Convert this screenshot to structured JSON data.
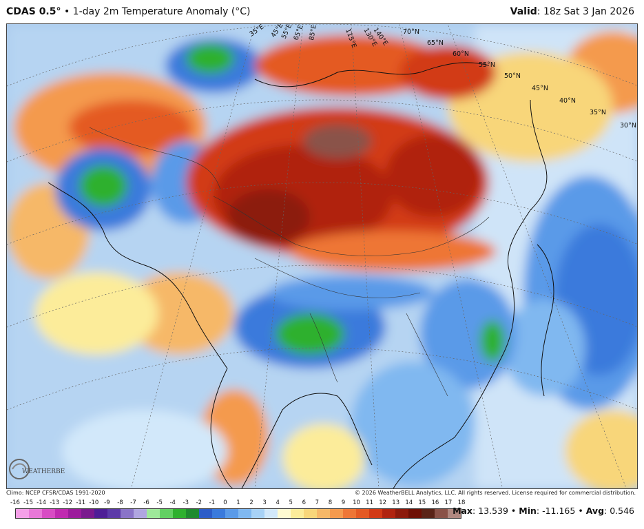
{
  "header": {
    "model": "CDAS 0.5°",
    "separator": "•",
    "product": "1-day 2m Temperature Anomaly (°C)",
    "valid_label": "Valid",
    "valid_value": ": 18z Sat 3 Jan 2026"
  },
  "map": {
    "lon_labels": [
      "35°E",
      "45°E",
      "55°E",
      "65°E",
      "85°E",
      "115°E",
      "130°E",
      "140°E"
    ],
    "lat_labels": [
      "70°N",
      "65°N",
      "60°N",
      "55°N",
      "50°N",
      "45°N",
      "40°N",
      "35°N",
      "30°N"
    ],
    "logo_text": "WEATHERBELL"
  },
  "footer": {
    "climo": "Climo: NCEP CFSR/CDAS 1991-2020",
    "copyright": "© 2026 WeatherBELL Analytics, LLC. All rights reserved. License required for commercial distribution."
  },
  "colorbar": {
    "ticks": [
      "-16",
      "-15",
      "-14",
      "-13",
      "-12",
      "-11",
      "-10",
      "-9",
      "-8",
      "-7",
      "-6",
      "-5",
      "-4",
      "-3",
      "-2",
      "-1",
      "0",
      "1",
      "2",
      "3",
      "4",
      "5",
      "6",
      "7",
      "8",
      "9",
      "10",
      "11",
      "12",
      "13",
      "14",
      "15",
      "16",
      "17",
      "18"
    ],
    "colors": [
      "#f5a0e8",
      "#e878d8",
      "#d84cc4",
      "#c02ab0",
      "#9c1c9c",
      "#7a1a8e",
      "#4e1e96",
      "#5c3aa8",
      "#8a74c8",
      "#b0a6e0",
      "#9ee89a",
      "#62d062",
      "#2eb02e",
      "#1e8a2e",
      "#2c5cc8",
      "#3a7adc",
      "#5a9ae8",
      "#80b8f0",
      "#a8d2f6",
      "#d2e8fa",
      "#fffbd2",
      "#fcec9a",
      "#f8d67a",
      "#f6b868",
      "#f49a4e",
      "#ee7636",
      "#e45a24",
      "#d23a16",
      "#b02410",
      "#8c1a0c",
      "#6e1006",
      "#5a2418",
      "#8a5248",
      "#b08880"
    ],
    "ticks_bottom_note": ""
  },
  "stats": {
    "max_label": "Max",
    "max_value": ": 13.539",
    "min_label": "Min",
    "min_value": ": -11.165",
    "avg_label": "Avg",
    "avg_value": ": 0.546",
    "sep": "•"
  }
}
